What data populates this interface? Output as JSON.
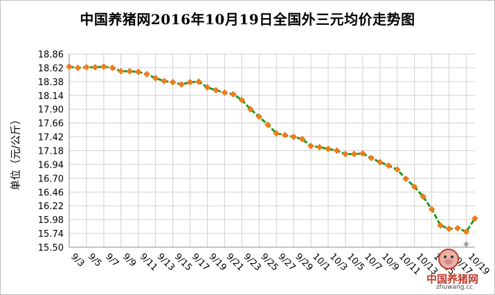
{
  "chart_data": {
    "type": "line",
    "title": "中国养猪网2016年10月19日全国外三元均价走势图",
    "ylabel": "单位（元/公斤）",
    "xlabel": "",
    "ylim": [
      15.5,
      18.86
    ],
    "yticks": [
      "18.86",
      "18.62",
      "18.38",
      "18.14",
      "17.90",
      "17.66",
      "17.42",
      "17.18",
      "16.94",
      "16.70",
      "16.46",
      "16.22",
      "15.98",
      "15.74",
      "15.50"
    ],
    "xtick_labels": [
      "9/3",
      "9/5",
      "9/7",
      "9/9",
      "9/11",
      "9/13",
      "9/15",
      "9/17",
      "9/19",
      "9/21",
      "9/23",
      "9/25",
      "9/27",
      "9/29",
      "10/1",
      "10/3",
      "10/5",
      "10/7",
      "10/9",
      "10/11",
      "10/13",
      "10/15",
      "10/17",
      "10/19"
    ],
    "grid": true,
    "series": [
      {
        "values": [
          18.64,
          18.62,
          18.63,
          18.63,
          18.64,
          18.62,
          18.56,
          18.56,
          18.55,
          18.51,
          18.44,
          18.39,
          18.37,
          18.33,
          18.37,
          18.38,
          18.28,
          18.23,
          18.19,
          18.16,
          18.06,
          17.9,
          17.77,
          17.63,
          17.48,
          17.45,
          17.42,
          17.38,
          17.26,
          17.24,
          17.21,
          17.18,
          17.12,
          17.12,
          17.13,
          17.05,
          16.98,
          16.92,
          16.85,
          16.69,
          16.55,
          16.38,
          16.16,
          15.88,
          15.82,
          15.83,
          15.77,
          16.0
        ],
        "line_color": "#1e9b1e",
        "marker_color": "#f07d1a"
      }
    ]
  },
  "logo": {
    "name": "中国养猪网",
    "url_text": "zhuwang.cc"
  }
}
